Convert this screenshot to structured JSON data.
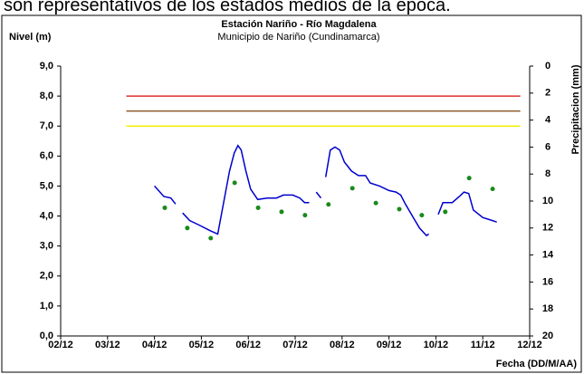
{
  "header_text": "son representativos de los estados medios de la época.",
  "chart_data": {
    "type": "line",
    "title": "Estación Nariño - Río Magdalena",
    "subtitle": "Municipio de Nariño (Cundinamarca)",
    "ylabel": "Nivel (m)",
    "y2label": "Precipitacion (mm)",
    "xlabel": "Fecha (DD/M/AA)",
    "xlim": [
      0,
      10
    ],
    "xticks": [
      {
        "value": 0,
        "label": "02/12"
      },
      {
        "value": 1,
        "label": "03/12"
      },
      {
        "value": 2,
        "label": "04/12"
      },
      {
        "value": 3,
        "label": "05/12"
      },
      {
        "value": 4,
        "label": "06/12"
      },
      {
        "value": 5,
        "label": "07/12"
      },
      {
        "value": 6,
        "label": "08/12"
      },
      {
        "value": 7,
        "label": "09/12"
      },
      {
        "value": 8,
        "label": "10/12"
      },
      {
        "value": 9,
        "label": "11/12"
      },
      {
        "value": 10,
        "label": "12/12"
      }
    ],
    "ylim": [
      0,
      9
    ],
    "yticks": [
      {
        "value": 0,
        "label": "0,0"
      },
      {
        "value": 1,
        "label": "1,0"
      },
      {
        "value": 2,
        "label": "2,0"
      },
      {
        "value": 3,
        "label": "3,0"
      },
      {
        "value": 4,
        "label": "4,0"
      },
      {
        "value": 5,
        "label": "5,0"
      },
      {
        "value": 6,
        "label": "6,0"
      },
      {
        "value": 7,
        "label": "7,0"
      },
      {
        "value": 8,
        "label": "8,0"
      },
      {
        "value": 9,
        "label": "9,0"
      }
    ],
    "y2lim": [
      20,
      0
    ],
    "y2ticks": [
      0,
      2,
      4,
      6,
      8,
      10,
      12,
      14,
      16,
      18,
      20
    ],
    "grid": false,
    "reference_lines": [
      {
        "value": 8.0,
        "color": "#e03030",
        "xrange": [
          1.4,
          9.8
        ]
      },
      {
        "value": 7.5,
        "color": "#8b5a2b",
        "xrange": [
          1.4,
          9.8
        ]
      },
      {
        "value": 7.0,
        "color": "#f0f000",
        "xrange": [
          1.4,
          9.8
        ]
      }
    ],
    "level": {
      "color": "#0000cc",
      "x": [
        2.0,
        2.2,
        2.35,
        2.45,
        2.52,
        2.6,
        2.75,
        2.95,
        3.2,
        3.35,
        3.42,
        3.6,
        3.7,
        3.78,
        3.85,
        3.95,
        4.05,
        4.2,
        4.4,
        4.6,
        4.75,
        4.95,
        5.1,
        5.2,
        5.3,
        5.38,
        5.45,
        5.55,
        5.6,
        5.65,
        5.75,
        5.85,
        5.95,
        6.05,
        6.2,
        6.35,
        6.5,
        6.6,
        6.8,
        7.0,
        7.15,
        7.25,
        7.35,
        7.5,
        7.65,
        7.8,
        7.85,
        7.95,
        8.05,
        8.15,
        8.35,
        8.5,
        8.6,
        8.7,
        8.8,
        9.0,
        9.2,
        9.3
      ],
      "values": [
        5.0,
        4.65,
        4.6,
        4.4,
        null,
        4.1,
        3.85,
        3.7,
        3.5,
        3.4,
        4.0,
        5.5,
        6.1,
        6.35,
        6.2,
        5.5,
        4.9,
        4.55,
        4.6,
        4.6,
        4.7,
        4.7,
        4.6,
        4.45,
        4.45,
        null,
        4.8,
        4.6,
        null,
        5.3,
        6.2,
        6.3,
        6.2,
        5.8,
        5.5,
        5.35,
        5.35,
        5.1,
        5.0,
        4.85,
        4.8,
        4.7,
        4.4,
        4.0,
        3.6,
        3.35,
        3.4,
        null,
        4.05,
        4.45,
        4.45,
        4.65,
        4.8,
        4.75,
        4.2,
        3.95,
        3.85,
        3.8
      ]
    },
    "precipitation": {
      "color": "#1a8a1a",
      "axis": "y2",
      "x": [
        2.22,
        2.7,
        3.2,
        3.71,
        4.21,
        4.71,
        5.21,
        5.71,
        6.22,
        6.72,
        7.22,
        7.7,
        8.2,
        8.71,
        9.21
      ],
      "values": [
        10.5,
        12.0,
        12.75,
        8.65,
        10.5,
        10.8,
        11.05,
        10.25,
        9.05,
        10.15,
        10.6,
        11.05,
        10.8,
        8.3,
        9.1
      ]
    }
  }
}
